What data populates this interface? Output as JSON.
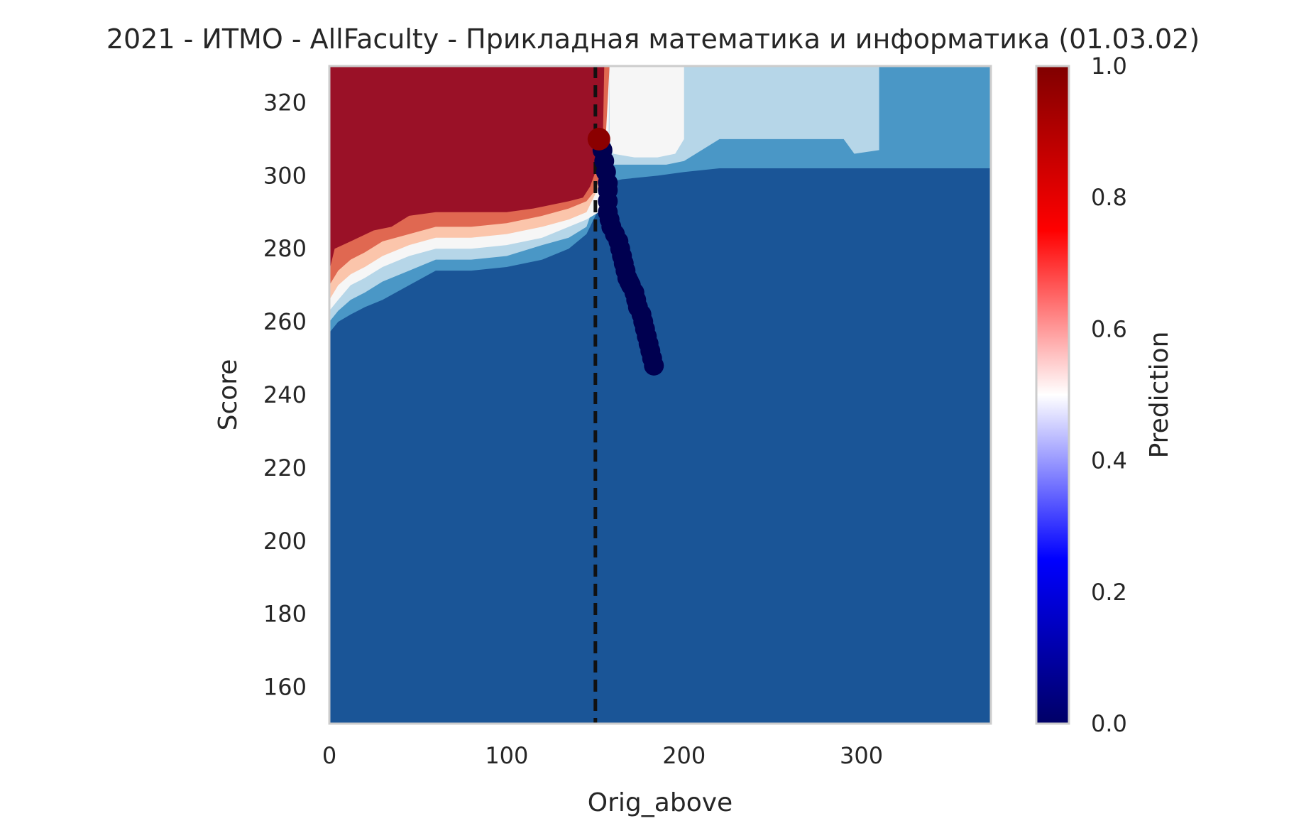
{
  "chart_data": {
    "type": "heatmap",
    "title": "2021 - ИТМО - AllFaculty - Прикладная математика и информатика (01.03.02)",
    "xlabel": "Orig_above",
    "ylabel": "Score",
    "xlim": [
      0,
      373
    ],
    "ylim": [
      150,
      330
    ],
    "x_ticks": [
      0,
      100,
      200,
      300
    ],
    "y_ticks": [
      160,
      180,
      200,
      220,
      240,
      260,
      280,
      300,
      320
    ],
    "grid": false,
    "colorbar": {
      "label": "Prediction",
      "range": [
        0,
        1
      ],
      "ticks": [
        0.0,
        0.2,
        0.4,
        0.6,
        0.8,
        1.0
      ],
      "colormap": [
        "#000066",
        "#0000ff",
        "#ffffff",
        "#ff0000",
        "#800000"
      ]
    },
    "levels": [
      {
        "value": 0.0,
        "color": "#1a5597"
      },
      {
        "value": 0.2,
        "color": "#4a97c6"
      },
      {
        "value": 0.4,
        "color": "#b6d6e8"
      },
      {
        "value": 0.5,
        "color": "#f6f6f6"
      },
      {
        "value": 0.6,
        "color": "#fbc5ab"
      },
      {
        "value": 0.7,
        "color": "#e06851"
      },
      {
        "value": 1.0,
        "color": "#9a1127"
      }
    ],
    "threshold_x": 150,
    "contours": [
      {
        "level": 0.2,
        "points": [
          [
            0,
            257
          ],
          [
            5,
            260
          ],
          [
            12,
            262
          ],
          [
            20,
            264
          ],
          [
            30,
            266
          ],
          [
            45,
            270
          ],
          [
            60,
            274
          ],
          [
            80,
            274
          ],
          [
            100,
            275
          ],
          [
            120,
            277
          ],
          [
            135,
            280
          ],
          [
            145,
            284
          ],
          [
            150,
            289
          ],
          [
            155,
            298
          ],
          [
            165,
            299
          ],
          [
            185,
            300
          ],
          [
            200,
            301
          ],
          [
            220,
            302
          ],
          [
            260,
            302
          ],
          [
            300,
            302
          ],
          [
            373,
            302
          ]
        ]
      },
      {
        "level": 0.4,
        "points": [
          [
            0,
            260
          ],
          [
            5,
            263
          ],
          [
            12,
            266
          ],
          [
            20,
            268
          ],
          [
            30,
            271
          ],
          [
            45,
            274
          ],
          [
            60,
            277
          ],
          [
            80,
            277
          ],
          [
            100,
            278
          ],
          [
            120,
            281
          ],
          [
            135,
            283
          ],
          [
            145,
            286
          ],
          [
            150,
            293
          ],
          [
            158,
            303
          ],
          [
            190,
            303
          ],
          [
            200,
            304
          ],
          [
            220,
            310
          ],
          [
            290,
            310
          ],
          [
            296,
            306
          ],
          [
            310,
            307
          ],
          [
            310,
            330
          ]
        ]
      },
      {
        "level": 0.5,
        "points": [
          [
            0,
            263
          ],
          [
            5,
            266
          ],
          [
            12,
            270
          ],
          [
            20,
            272
          ],
          [
            30,
            275
          ],
          [
            45,
            278
          ],
          [
            60,
            280
          ],
          [
            80,
            280
          ],
          [
            100,
            281
          ],
          [
            120,
            283
          ],
          [
            135,
            286
          ],
          [
            145,
            288
          ],
          [
            152,
            290
          ],
          [
            157,
            294
          ],
          [
            158,
            330
          ]
        ]
      },
      {
        "level": 0.6,
        "points": [
          [
            0,
            266
          ],
          [
            5,
            270
          ],
          [
            12,
            273
          ],
          [
            20,
            275
          ],
          [
            30,
            278
          ],
          [
            45,
            281
          ],
          [
            60,
            283
          ],
          [
            80,
            283
          ],
          [
            100,
            284
          ],
          [
            120,
            286
          ],
          [
            135,
            288
          ],
          [
            145,
            290
          ],
          [
            155,
            300
          ]
        ]
      },
      {
        "level": 0.7,
        "points": [
          [
            0,
            270
          ],
          [
            5,
            274
          ],
          [
            12,
            277
          ],
          [
            20,
            279
          ],
          [
            30,
            282
          ],
          [
            45,
            284
          ],
          [
            60,
            286
          ],
          [
            80,
            286
          ],
          [
            100,
            287
          ],
          [
            120,
            289
          ],
          [
            135,
            291
          ],
          [
            145,
            293
          ],
          [
            150,
            296
          ],
          [
            155,
            303
          ],
          [
            158,
            330
          ]
        ]
      },
      {
        "level": 1.0,
        "points": [
          [
            0,
            274
          ],
          [
            3,
            280
          ],
          [
            12,
            282
          ],
          [
            25,
            285
          ],
          [
            35,
            286
          ],
          [
            45,
            289
          ],
          [
            60,
            290
          ],
          [
            90,
            290
          ],
          [
            100,
            290
          ],
          [
            115,
            291
          ],
          [
            125,
            292
          ],
          [
            135,
            293
          ],
          [
            143,
            294
          ],
          [
            147,
            297
          ],
          [
            150,
            301
          ],
          [
            154,
            304
          ],
          [
            155,
            330
          ]
        ]
      }
    ],
    "white_region": [
      [
        158,
        330
      ],
      [
        158,
        310
      ],
      [
        160,
        306
      ],
      [
        172,
        305
      ],
      [
        185,
        305
      ],
      [
        195,
        306
      ],
      [
        200,
        310
      ],
      [
        200,
        330
      ]
    ],
    "trajectory": {
      "color": "#000050",
      "points": [
        [
          152,
          310
        ],
        [
          154,
          307
        ],
        [
          155,
          304
        ],
        [
          156,
          301
        ],
        [
          157,
          298
        ],
        [
          157,
          296
        ],
        [
          157,
          293
        ],
        [
          157,
          290
        ],
        [
          158,
          288
        ],
        [
          159,
          286
        ],
        [
          161,
          284
        ],
        [
          163,
          282
        ],
        [
          164,
          280
        ],
        [
          165,
          278
        ],
        [
          166,
          276
        ],
        [
          167,
          274
        ],
        [
          168,
          272
        ],
        [
          169,
          271
        ],
        [
          170,
          270
        ],
        [
          172,
          268
        ],
        [
          173,
          266
        ],
        [
          174,
          264
        ],
        [
          176,
          262
        ],
        [
          177,
          260
        ],
        [
          178,
          258
        ],
        [
          179,
          256
        ],
        [
          180,
          254
        ],
        [
          181,
          252
        ],
        [
          182,
          250
        ],
        [
          183,
          248
        ]
      ],
      "start_point": {
        "x": 152,
        "y": 310,
        "color": "#8b0000"
      }
    }
  }
}
